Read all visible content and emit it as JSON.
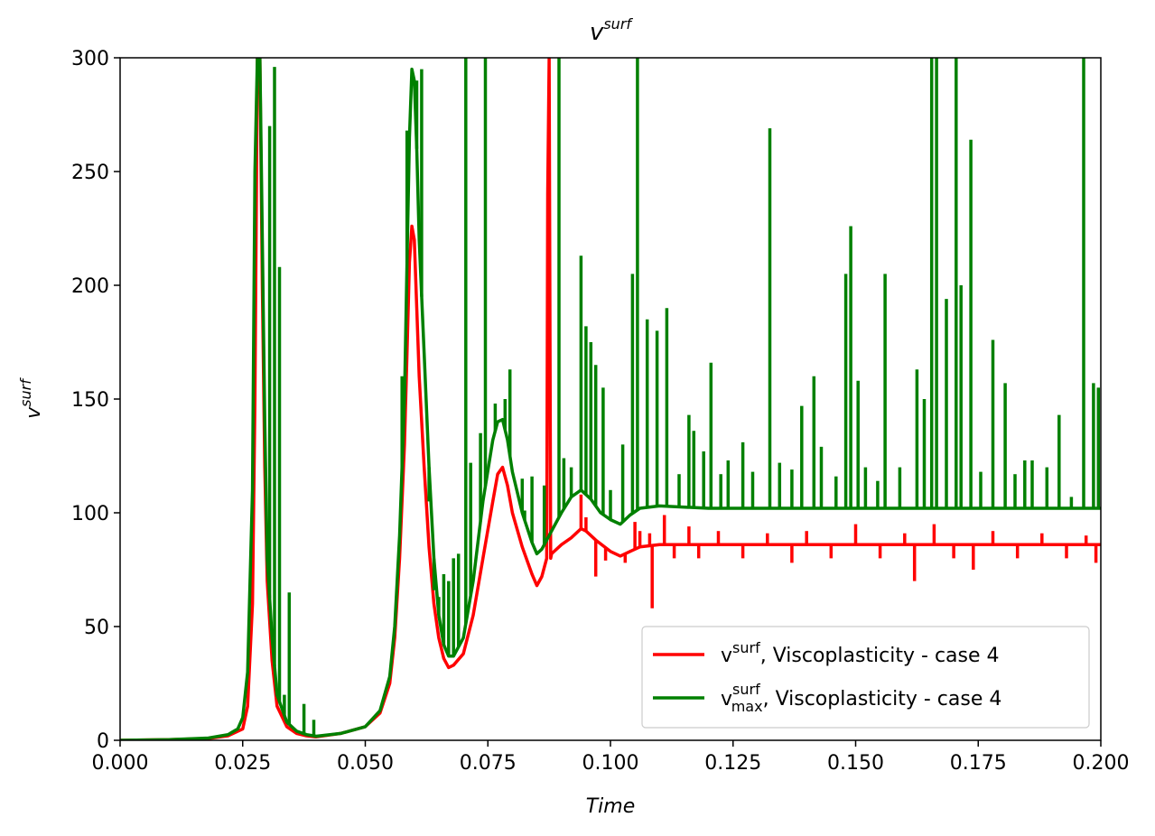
{
  "chart_data": {
    "type": "line",
    "title": {
      "base": "v",
      "sup": "surf"
    },
    "xlabel": "Time",
    "ylabel": {
      "base": "v",
      "sup": "surf"
    },
    "xlim": [
      0.0,
      0.2
    ],
    "ylim": [
      0,
      300
    ],
    "xticks": [
      "0.000",
      "0.025",
      "0.050",
      "0.075",
      "0.100",
      "0.125",
      "0.150",
      "0.175",
      "0.200"
    ],
    "yticks": [
      "0",
      "50",
      "100",
      "150",
      "200",
      "250",
      "300"
    ],
    "grid": false,
    "legend_position": "bottom-right",
    "series": [
      {
        "label_base": "v",
        "label_sup": "surf",
        "label_sub": "",
        "label_rest": ", Viscoplasticity - case 4",
        "color": "#ff0000",
        "points": [
          [
            0.0,
            0
          ],
          [
            0.01,
            0.3
          ],
          [
            0.018,
            0.8
          ],
          [
            0.022,
            2
          ],
          [
            0.025,
            5
          ],
          [
            0.026,
            15
          ],
          [
            0.027,
            60
          ],
          [
            0.0275,
            150
          ],
          [
            0.028,
            300
          ],
          [
            0.0285,
            300
          ],
          [
            0.029,
            200
          ],
          [
            0.0295,
            120
          ],
          [
            0.03,
            70
          ],
          [
            0.031,
            35
          ],
          [
            0.032,
            15
          ],
          [
            0.034,
            6
          ],
          [
            0.036,
            3
          ],
          [
            0.038,
            2
          ],
          [
            0.04,
            1.5
          ],
          [
            0.045,
            3
          ],
          [
            0.05,
            6
          ],
          [
            0.053,
            12
          ],
          [
            0.055,
            25
          ],
          [
            0.056,
            45
          ],
          [
            0.057,
            80
          ],
          [
            0.058,
            130
          ],
          [
            0.0585,
            170
          ],
          [
            0.059,
            210
          ],
          [
            0.0595,
            226
          ],
          [
            0.06,
            220
          ],
          [
            0.0605,
            190
          ],
          [
            0.061,
            160
          ],
          [
            0.062,
            120
          ],
          [
            0.063,
            85
          ],
          [
            0.064,
            60
          ],
          [
            0.065,
            45
          ],
          [
            0.066,
            36
          ],
          [
            0.067,
            32
          ],
          [
            0.068,
            33
          ],
          [
            0.07,
            38
          ],
          [
            0.072,
            55
          ],
          [
            0.074,
            80
          ],
          [
            0.076,
            105
          ],
          [
            0.077,
            117
          ],
          [
            0.078,
            120
          ],
          [
            0.079,
            112
          ],
          [
            0.08,
            100
          ],
          [
            0.082,
            85
          ],
          [
            0.084,
            73
          ],
          [
            0.085,
            68
          ],
          [
            0.086,
            72
          ],
          [
            0.087,
            80
          ],
          [
            0.0872,
            240
          ],
          [
            0.0875,
            300
          ],
          [
            0.0878,
            80
          ],
          [
            0.088,
            82
          ],
          [
            0.09,
            86
          ],
          [
            0.092,
            89
          ],
          [
            0.094,
            93
          ],
          [
            0.095,
            92
          ],
          [
            0.097,
            88
          ],
          [
            0.1,
            83
          ],
          [
            0.102,
            81
          ],
          [
            0.104,
            83
          ],
          [
            0.106,
            85
          ],
          [
            0.11,
            86
          ],
          [
            0.12,
            86
          ],
          [
            0.13,
            86
          ],
          [
            0.14,
            86
          ],
          [
            0.15,
            86
          ],
          [
            0.16,
            86
          ],
          [
            0.17,
            86
          ],
          [
            0.18,
            86
          ],
          [
            0.19,
            86
          ],
          [
            0.2,
            86
          ]
        ],
        "spikes": [
          [
            0.094,
            108
          ],
          [
            0.095,
            98
          ],
          [
            0.097,
            72
          ],
          [
            0.099,
            79
          ],
          [
            0.103,
            78
          ],
          [
            0.105,
            96
          ],
          [
            0.106,
            92
          ],
          [
            0.108,
            91
          ],
          [
            0.1085,
            58
          ],
          [
            0.111,
            99
          ],
          [
            0.113,
            80
          ],
          [
            0.116,
            94
          ],
          [
            0.118,
            80
          ],
          [
            0.122,
            92
          ],
          [
            0.127,
            80
          ],
          [
            0.132,
            91
          ],
          [
            0.137,
            78
          ],
          [
            0.14,
            92
          ],
          [
            0.145,
            80
          ],
          [
            0.15,
            95
          ],
          [
            0.155,
            80
          ],
          [
            0.16,
            91
          ],
          [
            0.162,
            70
          ],
          [
            0.166,
            95
          ],
          [
            0.17,
            80
          ],
          [
            0.174,
            75
          ],
          [
            0.178,
            92
          ],
          [
            0.183,
            80
          ],
          [
            0.188,
            91
          ],
          [
            0.193,
            80
          ],
          [
            0.197,
            90
          ],
          [
            0.199,
            78
          ]
        ]
      },
      {
        "label_base": "v",
        "label_sup": "surf",
        "label_sub": "max",
        "label_rest": ", Viscoplasticity - case 4",
        "color": "#008000",
        "points": [
          [
            0.0,
            0
          ],
          [
            0.01,
            0.3
          ],
          [
            0.018,
            1
          ],
          [
            0.022,
            2.5
          ],
          [
            0.024,
            5
          ],
          [
            0.025,
            10
          ],
          [
            0.026,
            30
          ],
          [
            0.027,
            110
          ],
          [
            0.0275,
            250
          ],
          [
            0.028,
            300
          ],
          [
            0.0285,
            300
          ],
          [
            0.029,
            220
          ],
          [
            0.0295,
            140
          ],
          [
            0.03,
            80
          ],
          [
            0.031,
            45
          ],
          [
            0.032,
            20
          ],
          [
            0.034,
            8
          ],
          [
            0.036,
            4
          ],
          [
            0.038,
            2.5
          ],
          [
            0.04,
            1.8
          ],
          [
            0.045,
            3
          ],
          [
            0.05,
            6
          ],
          [
            0.053,
            13
          ],
          [
            0.055,
            28
          ],
          [
            0.056,
            50
          ],
          [
            0.057,
            90
          ],
          [
            0.058,
            150
          ],
          [
            0.0585,
            210
          ],
          [
            0.059,
            265
          ],
          [
            0.0595,
            295
          ],
          [
            0.06,
            290
          ],
          [
            0.0605,
            260
          ],
          [
            0.061,
            220
          ],
          [
            0.062,
            170
          ],
          [
            0.063,
            120
          ],
          [
            0.064,
            80
          ],
          [
            0.065,
            55
          ],
          [
            0.066,
            42
          ],
          [
            0.067,
            37
          ],
          [
            0.068,
            37
          ],
          [
            0.07,
            45
          ],
          [
            0.072,
            70
          ],
          [
            0.074,
            105
          ],
          [
            0.076,
            132
          ],
          [
            0.077,
            140
          ],
          [
            0.078,
            141
          ],
          [
            0.079,
            132
          ],
          [
            0.08,
            118
          ],
          [
            0.082,
            100
          ],
          [
            0.084,
            87
          ],
          [
            0.085,
            82
          ],
          [
            0.086,
            84
          ],
          [
            0.088,
            92
          ],
          [
            0.09,
            100
          ],
          [
            0.092,
            107
          ],
          [
            0.094,
            110
          ],
          [
            0.096,
            106
          ],
          [
            0.098,
            100
          ],
          [
            0.1,
            97
          ],
          [
            0.102,
            95
          ],
          [
            0.104,
            99
          ],
          [
            0.106,
            102
          ],
          [
            0.11,
            103
          ],
          [
            0.12,
            102
          ],
          [
            0.13,
            102
          ],
          [
            0.14,
            102
          ],
          [
            0.15,
            102
          ],
          [
            0.16,
            102
          ],
          [
            0.17,
            102
          ],
          [
            0.18,
            102
          ],
          [
            0.19,
            102
          ],
          [
            0.2,
            102
          ]
        ],
        "spikes": [
          [
            0.0305,
            270
          ],
          [
            0.0315,
            296
          ],
          [
            0.0325,
            208
          ],
          [
            0.0335,
            20
          ],
          [
            0.0345,
            65
          ],
          [
            0.0375,
            16
          ],
          [
            0.0395,
            9
          ],
          [
            0.0575,
            160
          ],
          [
            0.0585,
            268
          ],
          [
            0.0605,
            290
          ],
          [
            0.0615,
            295
          ],
          [
            0.063,
            105
          ],
          [
            0.064,
            66
          ],
          [
            0.065,
            63
          ],
          [
            0.066,
            73
          ],
          [
            0.067,
            70
          ],
          [
            0.068,
            80
          ],
          [
            0.069,
            82
          ],
          [
            0.0705,
            300
          ],
          [
            0.0715,
            122
          ],
          [
            0.0735,
            135
          ],
          [
            0.0745,
            300
          ],
          [
            0.0765,
            148
          ],
          [
            0.0785,
            150
          ],
          [
            0.0795,
            163
          ],
          [
            0.082,
            115
          ],
          [
            0.0825,
            101
          ],
          [
            0.084,
            116
          ],
          [
            0.0865,
            112
          ],
          [
            0.0895,
            300
          ],
          [
            0.0905,
            124
          ],
          [
            0.092,
            120
          ],
          [
            0.094,
            213
          ],
          [
            0.095,
            182
          ],
          [
            0.096,
            175
          ],
          [
            0.097,
            165
          ],
          [
            0.0985,
            155
          ],
          [
            0.1,
            110
          ],
          [
            0.1025,
            130
          ],
          [
            0.1045,
            205
          ],
          [
            0.1055,
            300
          ],
          [
            0.1075,
            185
          ],
          [
            0.1095,
            180
          ],
          [
            0.1115,
            190
          ],
          [
            0.114,
            117
          ],
          [
            0.116,
            143
          ],
          [
            0.117,
            136
          ],
          [
            0.119,
            127
          ],
          [
            0.1205,
            166
          ],
          [
            0.1225,
            117
          ],
          [
            0.124,
            123
          ],
          [
            0.127,
            131
          ],
          [
            0.129,
            118
          ],
          [
            0.1325,
            269
          ],
          [
            0.1345,
            122
          ],
          [
            0.137,
            119
          ],
          [
            0.139,
            147
          ],
          [
            0.1415,
            160
          ],
          [
            0.143,
            129
          ],
          [
            0.146,
            116
          ],
          [
            0.148,
            205
          ],
          [
            0.149,
            226
          ],
          [
            0.1505,
            158
          ],
          [
            0.152,
            120
          ],
          [
            0.1545,
            114
          ],
          [
            0.156,
            205
          ],
          [
            0.159,
            120
          ],
          [
            0.1625,
            163
          ],
          [
            0.164,
            150
          ],
          [
            0.1655,
            300
          ],
          [
            0.1665,
            300
          ],
          [
            0.1685,
            194
          ],
          [
            0.1705,
            300
          ],
          [
            0.1715,
            200
          ],
          [
            0.1735,
            264
          ],
          [
            0.1755,
            118
          ],
          [
            0.178,
            176
          ],
          [
            0.1805,
            157
          ],
          [
            0.1825,
            117
          ],
          [
            0.1845,
            123
          ],
          [
            0.186,
            123
          ],
          [
            0.189,
            120
          ],
          [
            0.1915,
            143
          ],
          [
            0.194,
            107
          ],
          [
            0.1965,
            300
          ],
          [
            0.1985,
            157
          ],
          [
            0.1995,
            155
          ]
        ]
      }
    ]
  }
}
